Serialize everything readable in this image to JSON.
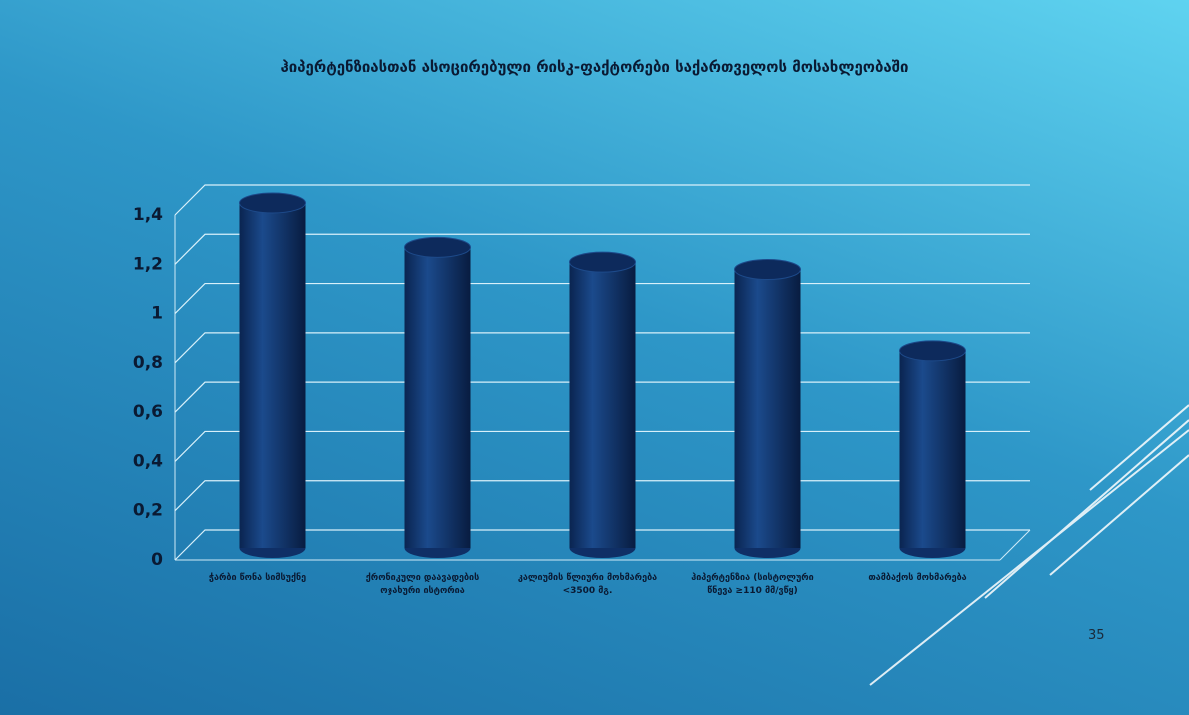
{
  "chart_data": {
    "type": "bar",
    "title": "ჰიპერტენზიასთან ასოცირებული რისკ-ფაქტორები საქართველოს მოსახლეობაში",
    "categories": [
      "ჭარბი წონა სიმსუქნე",
      "ქრონიკული დაავადების ოჯახური ისტორია",
      "კალიუმის წლიური მოხმარება <3500 მგ.",
      "ჰიპერტენზია (სისტოლური წნევა ≥110 მმ/ვწყ)",
      "თამბაქოს მოხმარება"
    ],
    "values": [
      1.4,
      1.22,
      1.16,
      1.13,
      0.8
    ],
    "color": "#0f2f66",
    "ylim": [
      0,
      1.4
    ],
    "yticks": [
      0,
      {
        "value": 0.2,
        "label": "0,2"
      },
      {
        "value": 0.4,
        "label": "0,4"
      },
      {
        "value": 0.6,
        "label": "0,6"
      },
      {
        "value": 0.8,
        "label": "0,8"
      },
      1,
      {
        "value": 1.2,
        "label": "1,2"
      },
      {
        "value": 1.4,
        "label": "1,4"
      }
    ],
    "grid": true
  },
  "slide": {
    "page_number": "35"
  }
}
